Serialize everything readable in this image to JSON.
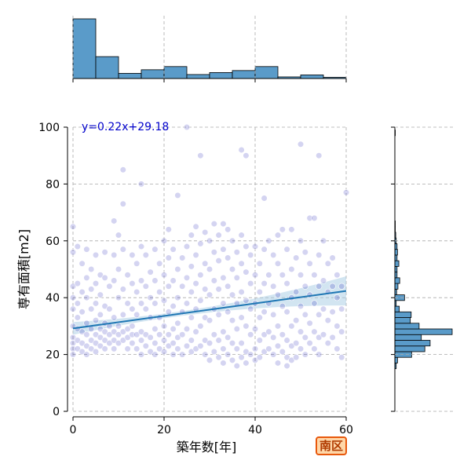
{
  "chart_data": {
    "type": "scatter",
    "xlabel": "築年数[年]",
    "ylabel": "専有面積[m2]",
    "xlim": [
      0,
      60
    ],
    "ylim": [
      0,
      100
    ],
    "xticks": [
      "0",
      "20",
      "40",
      "60"
    ],
    "yticks": [
      "0",
      "20",
      "40",
      "60",
      "80",
      "100"
    ],
    "grid": true,
    "regression": {
      "slope": 0.22,
      "intercept": 29.18,
      "label": "y=0.22x+29.18"
    },
    "colors": {
      "point": "#1010b0",
      "line": "#1f77b4",
      "band": "#a6cbe3",
      "hist": "#5a9bc9"
    },
    "points": [
      [
        0,
        65
      ],
      [
        0,
        56
      ],
      [
        0,
        44
      ],
      [
        0,
        40
      ],
      [
        0,
        36
      ],
      [
        0,
        30
      ],
      [
        0,
        26
      ],
      [
        0,
        24
      ],
      [
        0,
        22
      ],
      [
        0,
        20
      ],
      [
        1,
        58
      ],
      [
        1,
        45
      ],
      [
        1,
        38
      ],
      [
        1,
        33
      ],
      [
        1,
        29
      ],
      [
        1,
        25
      ],
      [
        1,
        22
      ],
      [
        2,
        52
      ],
      [
        2,
        42
      ],
      [
        2,
        35
      ],
      [
        2,
        28
      ],
      [
        2,
        24
      ],
      [
        2,
        21
      ],
      [
        3,
        57
      ],
      [
        3,
        47
      ],
      [
        3,
        40
      ],
      [
        3,
        31
      ],
      [
        3,
        27
      ],
      [
        3,
        23
      ],
      [
        3,
        20
      ],
      [
        4,
        50
      ],
      [
        4,
        43
      ],
      [
        4,
        36
      ],
      [
        4,
        29
      ],
      [
        4,
        25
      ],
      [
        4,
        22
      ],
      [
        5,
        55
      ],
      [
        5,
        45
      ],
      [
        5,
        38
      ],
      [
        5,
        32
      ],
      [
        5,
        27
      ],
      [
        5,
        24
      ],
      [
        5,
        21
      ],
      [
        6,
        48
      ],
      [
        6,
        41
      ],
      [
        6,
        34
      ],
      [
        6,
        29
      ],
      [
        6,
        26
      ],
      [
        6,
        23
      ],
      [
        7,
        56
      ],
      [
        7,
        47
      ],
      [
        7,
        37
      ],
      [
        7,
        31
      ],
      [
        7,
        28
      ],
      [
        7,
        25
      ],
      [
        7,
        22
      ],
      [
        8,
        44
      ],
      [
        8,
        36
      ],
      [
        8,
        30
      ],
      [
        8,
        27
      ],
      [
        8,
        24
      ],
      [
        9,
        67
      ],
      [
        9,
        55
      ],
      [
        9,
        46
      ],
      [
        9,
        33
      ],
      [
        9,
        28
      ],
      [
        9,
        25
      ],
      [
        9,
        22
      ],
      [
        10,
        62
      ],
      [
        10,
        50
      ],
      [
        10,
        40
      ],
      [
        10,
        30
      ],
      [
        10,
        27
      ],
      [
        10,
        24
      ],
      [
        11,
        85
      ],
      [
        11,
        73
      ],
      [
        11,
        57
      ],
      [
        11,
        43
      ],
      [
        11,
        34
      ],
      [
        11,
        28
      ],
      [
        11,
        25
      ],
      [
        12,
        48
      ],
      [
        12,
        38
      ],
      [
        12,
        29
      ],
      [
        12,
        26
      ],
      [
        12,
        22
      ],
      [
        13,
        55
      ],
      [
        13,
        45
      ],
      [
        13,
        36
      ],
      [
        13,
        30
      ],
      [
        13,
        27
      ],
      [
        13,
        24
      ],
      [
        14,
        52
      ],
      [
        14,
        42
      ],
      [
        14,
        34
      ],
      [
        14,
        27
      ],
      [
        14,
        22
      ],
      [
        15,
        80
      ],
      [
        15,
        58
      ],
      [
        15,
        46
      ],
      [
        15,
        38
      ],
      [
        15,
        28
      ],
      [
        15,
        25
      ],
      [
        15,
        20
      ],
      [
        16,
        55
      ],
      [
        16,
        44
      ],
      [
        16,
        36
      ],
      [
        16,
        27
      ],
      [
        16,
        23
      ],
      [
        17,
        49
      ],
      [
        17,
        40
      ],
      [
        17,
        33
      ],
      [
        17,
        26
      ],
      [
        17,
        21
      ],
      [
        18,
        57
      ],
      [
        18,
        46
      ],
      [
        18,
        38
      ],
      [
        18,
        29
      ],
      [
        18,
        24
      ],
      [
        18,
        20
      ],
      [
        19,
        52
      ],
      [
        19,
        42
      ],
      [
        19,
        33
      ],
      [
        19,
        27
      ],
      [
        19,
        22
      ],
      [
        20,
        60
      ],
      [
        20,
        48
      ],
      [
        20,
        39
      ],
      [
        20,
        30
      ],
      [
        20,
        25
      ],
      [
        20,
        21
      ],
      [
        21,
        64
      ],
      [
        21,
        54
      ],
      [
        21,
        44
      ],
      [
        21,
        35
      ],
      [
        21,
        27
      ],
      [
        21,
        23
      ],
      [
        22,
        57
      ],
      [
        22,
        46
      ],
      [
        22,
        37
      ],
      [
        22,
        29
      ],
      [
        22,
        24
      ],
      [
        22,
        20
      ],
      [
        23,
        76
      ],
      [
        23,
        50
      ],
      [
        23,
        40
      ],
      [
        23,
        31
      ],
      [
        23,
        26
      ],
      [
        23,
        22
      ],
      [
        24,
        54
      ],
      [
        24,
        44
      ],
      [
        24,
        35
      ],
      [
        24,
        27
      ],
      [
        24,
        20
      ],
      [
        25,
        100
      ],
      [
        25,
        58
      ],
      [
        25,
        47
      ],
      [
        25,
        38
      ],
      [
        25,
        29
      ],
      [
        25,
        23
      ],
      [
        26,
        62
      ],
      [
        26,
        51
      ],
      [
        26,
        42
      ],
      [
        26,
        33
      ],
      [
        26,
        25
      ],
      [
        26,
        21
      ],
      [
        27,
        65
      ],
      [
        27,
        55
      ],
      [
        27,
        45
      ],
      [
        27,
        36
      ],
      [
        27,
        28
      ],
      [
        27,
        22
      ],
      [
        28,
        90
      ],
      [
        28,
        59
      ],
      [
        28,
        48
      ],
      [
        28,
        39
      ],
      [
        28,
        30
      ],
      [
        28,
        23
      ],
      [
        29,
        63
      ],
      [
        29,
        52
      ],
      [
        29,
        43
      ],
      [
        29,
        33
      ],
      [
        29,
        25
      ],
      [
        29,
        20
      ],
      [
        30,
        60
      ],
      [
        30,
        50
      ],
      [
        30,
        41
      ],
      [
        30,
        32
      ],
      [
        30,
        24
      ],
      [
        30,
        18
      ],
      [
        31,
        66
      ],
      [
        31,
        56
      ],
      [
        31,
        46
      ],
      [
        31,
        36
      ],
      [
        31,
        27
      ],
      [
        31,
        21
      ],
      [
        32,
        62
      ],
      [
        32,
        53
      ],
      [
        32,
        43
      ],
      [
        32,
        34
      ],
      [
        32,
        25
      ],
      [
        32,
        19
      ],
      [
        33,
        66
      ],
      [
        33,
        57
      ],
      [
        33,
        47
      ],
      [
        33,
        38
      ],
      [
        33,
        28
      ],
      [
        33,
        22
      ],
      [
        33,
        17
      ],
      [
        34,
        64
      ],
      [
        34,
        54
      ],
      [
        34,
        44
      ],
      [
        34,
        35
      ],
      [
        34,
        26
      ],
      [
        34,
        20
      ],
      [
        35,
        60
      ],
      [
        35,
        50
      ],
      [
        35,
        41
      ],
      [
        35,
        32
      ],
      [
        35,
        24
      ],
      [
        35,
        18
      ],
      [
        36,
        56
      ],
      [
        36,
        47
      ],
      [
        36,
        38
      ],
      [
        36,
        29
      ],
      [
        36,
        22
      ],
      [
        36,
        16
      ],
      [
        37,
        92
      ],
      [
        37,
        62
      ],
      [
        37,
        52
      ],
      [
        37,
        42
      ],
      [
        37,
        33
      ],
      [
        37,
        24
      ],
      [
        37,
        19
      ],
      [
        38,
        90
      ],
      [
        38,
        58
      ],
      [
        38,
        49
      ],
      [
        38,
        39
      ],
      [
        38,
        30
      ],
      [
        38,
        21
      ],
      [
        38,
        17
      ],
      [
        39,
        55
      ],
      [
        39,
        45
      ],
      [
        39,
        36
      ],
      [
        39,
        27
      ],
      [
        39,
        20
      ],
      [
        40,
        58
      ],
      [
        40,
        48
      ],
      [
        40,
        38
      ],
      [
        40,
        29
      ],
      [
        40,
        22
      ],
      [
        40,
        18
      ],
      [
        41,
        52
      ],
      [
        41,
        42
      ],
      [
        41,
        33
      ],
      [
        41,
        25
      ],
      [
        41,
        19
      ],
      [
        42,
        75
      ],
      [
        42,
        57
      ],
      [
        42,
        45
      ],
      [
        42,
        35
      ],
      [
        42,
        27
      ],
      [
        42,
        21
      ],
      [
        43,
        60
      ],
      [
        43,
        48
      ],
      [
        43,
        38
      ],
      [
        43,
        28
      ],
      [
        43,
        22
      ],
      [
        44,
        55
      ],
      [
        44,
        44
      ],
      [
        44,
        34
      ],
      [
        44,
        26
      ],
      [
        44,
        20
      ],
      [
        45,
        62
      ],
      [
        45,
        52
      ],
      [
        45,
        41
      ],
      [
        45,
        30
      ],
      [
        45,
        23
      ],
      [
        45,
        17
      ],
      [
        46,
        64
      ],
      [
        46,
        48
      ],
      [
        46,
        37
      ],
      [
        46,
        27
      ],
      [
        46,
        21
      ],
      [
        47,
        57
      ],
      [
        47,
        45
      ],
      [
        47,
        35
      ],
      [
        47,
        25
      ],
      [
        47,
        19
      ],
      [
        47,
        16
      ],
      [
        48,
        64
      ],
      [
        48,
        50
      ],
      [
        48,
        40
      ],
      [
        48,
        30
      ],
      [
        48,
        23
      ],
      [
        48,
        18
      ],
      [
        49,
        54
      ],
      [
        49,
        42
      ],
      [
        49,
        32
      ],
      [
        49,
        24
      ],
      [
        49,
        19
      ],
      [
        50,
        94
      ],
      [
        50,
        60
      ],
      [
        50,
        48
      ],
      [
        50,
        37
      ],
      [
        50,
        28
      ],
      [
        50,
        22
      ],
      [
        51,
        56
      ],
      [
        51,
        44
      ],
      [
        51,
        34
      ],
      [
        51,
        26
      ],
      [
        51,
        20
      ],
      [
        52,
        68
      ],
      [
        52,
        52
      ],
      [
        52,
        41
      ],
      [
        52,
        31
      ],
      [
        52,
        24
      ],
      [
        53,
        68
      ],
      [
        53,
        48
      ],
      [
        53,
        38
      ],
      [
        53,
        28
      ],
      [
        53,
        22
      ],
      [
        54,
        90
      ],
      [
        54,
        55
      ],
      [
        54,
        44
      ],
      [
        54,
        34
      ],
      [
        54,
        26
      ],
      [
        54,
        20
      ],
      [
        55,
        60
      ],
      [
        55,
        46
      ],
      [
        55,
        36
      ],
      [
        55,
        27
      ],
      [
        56,
        52
      ],
      [
        56,
        42
      ],
      [
        56,
        32
      ],
      [
        56,
        24
      ],
      [
        57,
        54
      ],
      [
        57,
        44
      ],
      [
        57,
        35
      ],
      [
        57,
        26
      ],
      [
        58,
        48
      ],
      [
        58,
        40
      ],
      [
        58,
        30
      ],
      [
        58,
        22
      ],
      [
        59,
        44
      ],
      [
        59,
        36
      ],
      [
        59,
        28
      ],
      [
        59,
        19
      ],
      [
        60,
        77
      ]
    ],
    "histogram_x": {
      "bins": [
        0,
        5,
        10,
        15,
        20,
        25,
        30,
        35,
        40,
        45,
        50,
        55,
        60
      ],
      "counts": [
        150,
        55,
        13,
        22,
        30,
        10,
        15,
        20,
        30,
        4,
        9,
        3,
        4
      ]
    },
    "histogram_y": {
      "bins": [
        15,
        17,
        19,
        21,
        23,
        25,
        27,
        29,
        31,
        33,
        35,
        37,
        39,
        41,
        43,
        45,
        47,
        49,
        51,
        53,
        55,
        57,
        59,
        61,
        63,
        65,
        67,
        69,
        71,
        73,
        75,
        77,
        79,
        81,
        83,
        85,
        87,
        89,
        91,
        93,
        95,
        97,
        99,
        101
      ],
      "counts": [
        3,
        6,
        38,
        68,
        80,
        60,
        130,
        55,
        35,
        37,
        10,
        3,
        22,
        4,
        7,
        11,
        5,
        5,
        9,
        5,
        6,
        5,
        3,
        2,
        1,
        1,
        0,
        0,
        0,
        0,
        0,
        0,
        0,
        0,
        0,
        0,
        0,
        0,
        0,
        0,
        0,
        1,
        0
      ]
    }
  },
  "badge": {
    "label": "南区"
  }
}
